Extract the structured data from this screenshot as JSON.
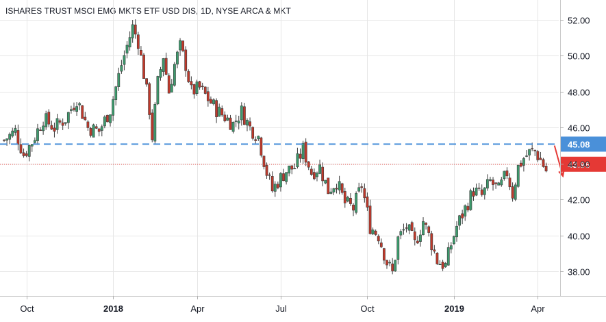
{
  "chart_data": {
    "type": "candlestick",
    "title": "ISHARES TRUST MSCI EMG MKTS ETF USD DIS, 1D, NYSE ARCA & MKT",
    "xlabel": "",
    "ylabel": "",
    "ylim": [
      36.5,
      53
    ],
    "y_ticks": [
      "52.00",
      "50.00",
      "48.00",
      "46.00",
      "44.00",
      "42.00",
      "40.00",
      "38.00"
    ],
    "x_ticks": [
      {
        "label": "Oct",
        "bold": false,
        "index": 8
      },
      {
        "label": "2018",
        "bold": true,
        "index": 39
      },
      {
        "label": "Apr",
        "bold": false,
        "index": 69
      },
      {
        "label": "Jul",
        "bold": false,
        "index": 99
      },
      {
        "label": "Oct",
        "bold": false,
        "index": 130
      },
      {
        "label": "2019",
        "bold": true,
        "index": 161
      },
      {
        "label": "Apr",
        "bold": false,
        "index": 191
      }
    ],
    "grid": true,
    "colors": {
      "up": "#26a69a",
      "down": "#ef5350",
      "up_fill": "#3d9b6d",
      "down_fill": "#c0392b",
      "grid": "#e6e6e6",
      "resistance": "#4a90d9",
      "current": "#e53935"
    },
    "levels": {
      "resistance": {
        "value": 45.08,
        "label": "45.08"
      },
      "current": {
        "value": 43.96,
        "label": "43.96"
      }
    },
    "annotation": {
      "type": "arrow-down",
      "color": "#e53935",
      "from": [
        197,
        45.0
      ],
      "to": [
        200,
        43.3
      ]
    },
    "close_path": [
      [
        0,
        45.3
      ],
      [
        4,
        45.8
      ],
      [
        7,
        44.5
      ],
      [
        10,
        45.2
      ],
      [
        14,
        46.5
      ],
      [
        18,
        46.0
      ],
      [
        22,
        46.5
      ],
      [
        26,
        47.6
      ],
      [
        30,
        46.0
      ],
      [
        34,
        45.8
      ],
      [
        38,
        47.0
      ],
      [
        42,
        49.5
      ],
      [
        46,
        51.6
      ],
      [
        48,
        50.8
      ],
      [
        50,
        49.0
      ],
      [
        52,
        47.0
      ],
      [
        53,
        45.5
      ],
      [
        55,
        48.5
      ],
      [
        57,
        50.0
      ],
      [
        59,
        48.0
      ],
      [
        61,
        49.5
      ],
      [
        63,
        50.5
      ],
      [
        65,
        49.5
      ],
      [
        67,
        48.0
      ],
      [
        70,
        48.2
      ],
      [
        73,
        47.6
      ],
      [
        76,
        47.0
      ],
      [
        79,
        46.6
      ],
      [
        82,
        46.2
      ],
      [
        85,
        46.9
      ],
      [
        88,
        46.0
      ],
      [
        91,
        45.5
      ],
      [
        94,
        43.5
      ],
      [
        96,
        42.5
      ],
      [
        98,
        43.0
      ],
      [
        101,
        43.6
      ],
      [
        104,
        43.8
      ],
      [
        107,
        44.8
      ],
      [
        110,
        43.5
      ],
      [
        113,
        43.8
      ],
      [
        116,
        42.5
      ],
      [
        119,
        43.0
      ],
      [
        122,
        41.8
      ],
      [
        125,
        41.5
      ],
      [
        128,
        42.8
      ],
      [
        131,
        40.5
      ],
      [
        134,
        40.0
      ],
      [
        137,
        38.5
      ],
      [
        139,
        37.9
      ],
      [
        141,
        39.8
      ],
      [
        144,
        40.5
      ],
      [
        147,
        39.5
      ],
      [
        150,
        40.8
      ],
      [
        152,
        40.0
      ],
      [
        155,
        38.6
      ],
      [
        158,
        38.3
      ],
      [
        160,
        39.5
      ],
      [
        162,
        40.5
      ],
      [
        165,
        41.5
      ],
      [
        168,
        42.5
      ],
      [
        171,
        42.2
      ],
      [
        174,
        43.0
      ],
      [
        177,
        42.5
      ],
      [
        180,
        43.5
      ],
      [
        182,
        42.3
      ],
      [
        184,
        43.8
      ],
      [
        186,
        44.3
      ],
      [
        188,
        44.6
      ],
      [
        190,
        44.7
      ],
      [
        192,
        44.2
      ],
      [
        194,
        43.6
      ]
    ]
  }
}
